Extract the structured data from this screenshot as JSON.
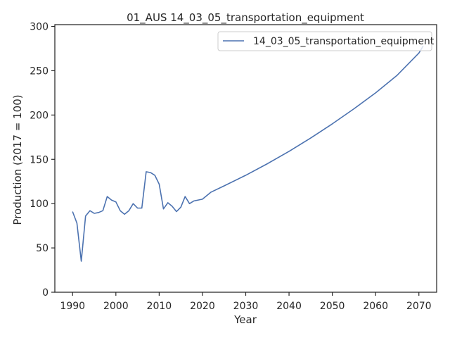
{
  "chart_data": {
    "type": "line",
    "title": "01_AUS 14_03_05_transportation_equipment",
    "xlabel": "Year",
    "ylabel": "Production (2017 = 100)",
    "xlim": [
      1985.9,
      2074.1
    ],
    "ylim": [
      0,
      302
    ],
    "xticks": [
      1990,
      2000,
      2010,
      2020,
      2030,
      2040,
      2050,
      2060,
      2070
    ],
    "yticks": [
      0,
      50,
      100,
      150,
      200,
      250,
      300
    ],
    "grid": false,
    "legend_position": "upper right",
    "colors": {
      "series": "#4c72b0",
      "axis": "#262626",
      "legend_border": "#cccccc"
    },
    "series": [
      {
        "name": "14_03_05_transportation_equipment",
        "x": [
          1990,
          1991,
          1992,
          1993,
          1994,
          1995,
          1996,
          1997,
          1998,
          1999,
          2000,
          2001,
          2002,
          2003,
          2004,
          2005,
          2006,
          2007,
          2008,
          2009,
          2010,
          2011,
          2012,
          2013,
          2014,
          2015,
          2016,
          2017,
          2018,
          2019,
          2020,
          2022,
          2025,
          2030,
          2035,
          2040,
          2045,
          2050,
          2055,
          2060,
          2065,
          2070,
          2071
        ],
        "y": [
          91,
          78,
          35,
          86,
          92,
          89,
          90,
          92,
          108,
          104,
          102,
          92,
          88,
          92,
          100,
          95,
          95,
          136,
          135,
          132,
          122,
          94,
          101,
          97,
          91,
          96,
          108,
          100,
          103,
          104,
          105,
          113,
          120,
          132,
          145,
          159,
          174,
          190,
          207,
          225,
          245,
          270,
          278
        ]
      }
    ]
  }
}
